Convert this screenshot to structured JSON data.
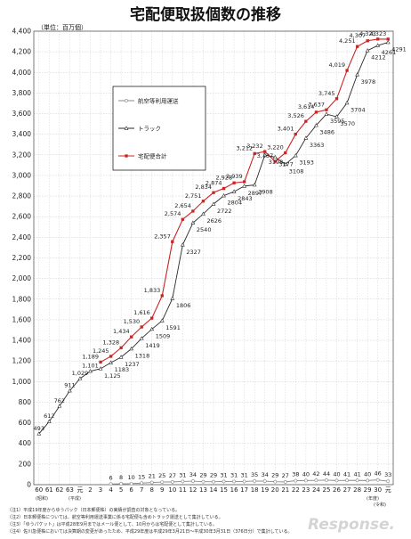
{
  "chart_data": {
    "type": "line",
    "title": "宅配便取扱個数の推移",
    "unit_label": "（単位：百万個）",
    "y_axis": {
      "min": 0,
      "max": 4400,
      "step": 200,
      "ticks": [
        "0",
        "200",
        "400",
        "600",
        "800",
        "1,000",
        "1,200",
        "1,400",
        "1,600",
        "1,800",
        "2,000",
        "2,200",
        "2,400",
        "2,600",
        "2,800",
        "3,000",
        "3,200",
        "3,400",
        "3,600",
        "3,800",
        "4,000",
        "4,200",
        "4,400"
      ]
    },
    "grid": true,
    "categories": [
      "60",
      "61",
      "62",
      "63",
      "元",
      "2",
      "3",
      "4",
      "5",
      "6",
      "7",
      "8",
      "9",
      "10",
      "11",
      "12",
      "13",
      "14",
      "15",
      "16",
      "17",
      "18",
      "19",
      "20",
      "21",
      "22",
      "23",
      "24",
      "25",
      "26",
      "27",
      "28",
      "29",
      "30",
      "元"
    ],
    "era_labels": {
      "showa": "(昭和)",
      "heisei": "(平成)",
      "reiwa": "(令和)",
      "year": "(年度)"
    },
    "series": [
      {
        "name": "航空等利用運送",
        "color": "#888888",
        "marker": "circle",
        "values": [
          null,
          null,
          null,
          null,
          null,
          null,
          null,
          6,
          8,
          10,
          15,
          21,
          25,
          27,
          31,
          34,
          29,
          29,
          31,
          31,
          31,
          35,
          34,
          29,
          27,
          38,
          40,
          42,
          44,
          40,
          41,
          41,
          40,
          46,
          33
        ]
      },
      {
        "name": "トラック",
        "color": "#2a2a2a",
        "marker": "triangle",
        "values": [
          493,
          612,
          762,
          911,
          1029,
          1101,
          1125,
          1183,
          1237,
          1318,
          1419,
          1509,
          1591,
          1806,
          2327,
          2540,
          2626,
          2722,
          2804,
          2843,
          2897,
          2908,
          3198,
          3177,
          3108,
          3193,
          3363,
          3486,
          3595,
          3570,
          3704,
          3978,
          4212,
          4261,
          4291
        ]
      },
      {
        "name": "宅配便合計",
        "color": "#cc2222",
        "marker": "square",
        "values": [
          null,
          null,
          null,
          null,
          null,
          null,
          1189,
          1245,
          1328,
          1434,
          1530,
          1616,
          1833,
          2357,
          2574,
          2654,
          2751,
          2834,
          2874,
          2928,
          2939,
          3212,
          3232,
          3137,
          3220,
          3401,
          3526,
          3614,
          3637,
          3745,
          4019,
          4251,
          4307,
          4323,
          4323
        ]
      }
    ],
    "legend_placement": "left-middle"
  },
  "notes": [
    "（注1）平成19年度からゆうパック（日本郵便株）の実績が調査の対象となっている。",
    "（注2）日本郵便株については、航空等利用運送事業に係る宅配便も含めトラック運送として集計している。",
    "（注3）「ゆうパケット」は平成28年9月まではメール便として、10月からは宅配便として集計している。",
    "（注4）佐川急便株においては決算期の変更があったため、平成29年度は平成29年3月21日～平成30年3月31日（376日分）で集計している。"
  ],
  "watermark": "Response."
}
